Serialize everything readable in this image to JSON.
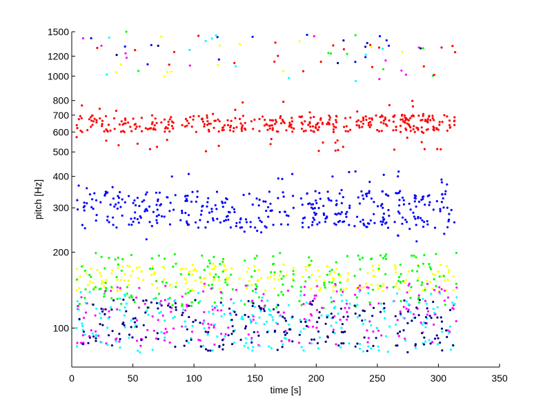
{
  "chart_data": {
    "type": "scatter",
    "title": "",
    "xlabel": "time [s]",
    "ylabel": "pitch [Hz]",
    "xlim": [
      0,
      350
    ],
    "ylim": [
      70,
      1500
    ],
    "yscale": "log",
    "grid": false,
    "xticks": [
      0,
      50,
      100,
      150,
      200,
      250,
      300,
      350
    ],
    "yticks": [
      100,
      200,
      300,
      400,
      500,
      600,
      700,
      800,
      1000,
      1200,
      1500
    ],
    "data_range_x": [
      4,
      315
    ],
    "gaps": [
      [
        86,
        89
      ],
      [
        135,
        137
      ],
      [
        182,
        186
      ],
      [
        228,
        231
      ],
      [
        260,
        263
      ]
    ],
    "series": [
      {
        "color": "#ff0000",
        "ranges": [
          [
            600,
            700
          ],
          [
            500,
            800
          ]
        ]
      },
      {
        "color": "#0000ff",
        "ranges": [
          [
            250,
            350
          ],
          [
            220,
            420
          ]
        ]
      },
      {
        "color": "#ffff00",
        "ranges": [
          [
            140,
            180
          ]
        ]
      },
      {
        "color": "#00ff00",
        "ranges": [
          [
            120,
            200
          ]
        ]
      },
      {
        "color": "#ff00ff",
        "ranges": [
          [
            85,
            150
          ]
        ]
      },
      {
        "color": "#00ffff",
        "ranges": [
          [
            80,
            140
          ]
        ]
      },
      {
        "color": "#000080",
        "ranges": [
          [
            80,
            130
          ]
        ]
      }
    ]
  }
}
